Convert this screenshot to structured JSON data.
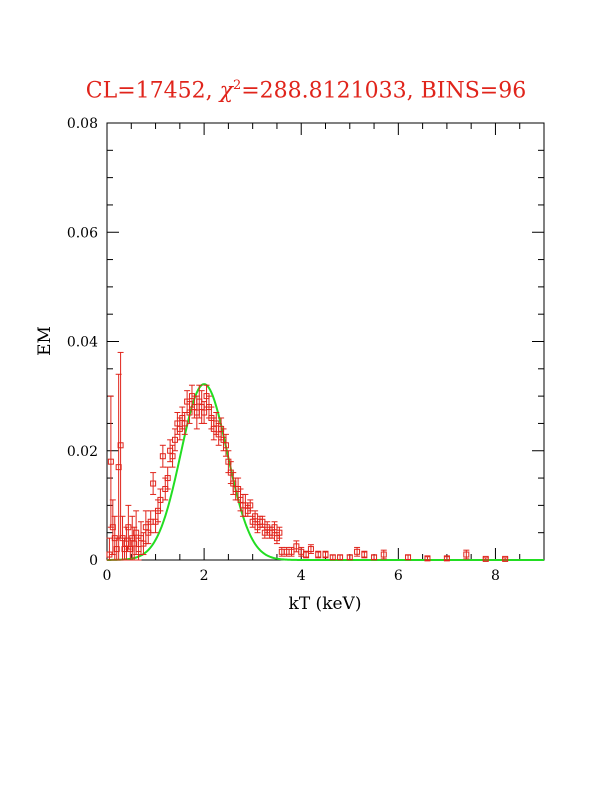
{
  "title_parts": {
    "prefix": "CL=17452, ",
    "chi": "χ",
    "sup": "2",
    "suffix": "=288.8121033, BINS=96"
  },
  "colors": {
    "title": "#e0241b",
    "data": "#e0241b",
    "fit": "#22dd22",
    "axis": "#000000"
  },
  "chart_data": {
    "type": "scatter",
    "xlabel": "kT (keV)",
    "ylabel": "EM",
    "xlim": [
      0,
      9
    ],
    "ylim": [
      0,
      0.08
    ],
    "xticks": [
      0,
      2,
      4,
      6,
      8
    ],
    "xtick_labels": [
      "0",
      "2",
      "4",
      "6",
      "8"
    ],
    "yticks": [
      0,
      0.02,
      0.04,
      0.06,
      0.08
    ],
    "ytick_labels": [
      "0",
      "0.02",
      "0.04",
      "0.06",
      "0.08"
    ],
    "grid": false,
    "series": [
      {
        "kind": "points-with-errorbars",
        "marker": "open-square",
        "x": [
          0.05,
          0.08,
          0.12,
          0.16,
          0.2,
          0.24,
          0.28,
          0.32,
          0.36,
          0.4,
          0.44,
          0.48,
          0.52,
          0.56,
          0.6,
          0.65,
          0.7,
          0.75,
          0.8,
          0.85,
          0.9,
          0.95,
          1.0,
          1.05,
          1.1,
          1.15,
          1.2,
          1.25,
          1.3,
          1.35,
          1.4,
          1.45,
          1.5,
          1.55,
          1.6,
          1.65,
          1.7,
          1.75,
          1.8,
          1.85,
          1.9,
          1.95,
          2.0,
          2.05,
          2.1,
          2.15,
          2.2,
          2.25,
          2.3,
          2.35,
          2.4,
          2.45,
          2.5,
          2.55,
          2.6,
          2.65,
          2.7,
          2.75,
          2.8,
          2.85,
          2.9,
          2.95,
          3.0,
          3.05,
          3.1,
          3.15,
          3.2,
          3.25,
          3.3,
          3.35,
          3.4,
          3.45,
          3.5,
          3.55,
          3.6,
          3.7,
          3.8,
          3.9,
          4.0,
          4.1,
          4.2,
          4.35,
          4.5,
          4.65,
          4.8,
          5.0,
          5.15,
          5.3,
          5.5,
          5.7,
          6.2,
          6.6,
          7.0,
          7.4,
          7.8,
          8.2
        ],
        "y": [
          0.001,
          0.018,
          0.006,
          0.004,
          0.002,
          0.017,
          0.021,
          0.004,
          0.002,
          0.003,
          0.006,
          0.002,
          0.004,
          0.003,
          0.005,
          0.002,
          0.004,
          0.003,
          0.006,
          0.005,
          0.007,
          0.014,
          0.007,
          0.009,
          0.011,
          0.019,
          0.013,
          0.015,
          0.02,
          0.019,
          0.022,
          0.025,
          0.024,
          0.026,
          0.025,
          0.029,
          0.027,
          0.03,
          0.028,
          0.027,
          0.029,
          0.028,
          0.027,
          0.03,
          0.028,
          0.026,
          0.024,
          0.025,
          0.023,
          0.024,
          0.022,
          0.021,
          0.018,
          0.016,
          0.014,
          0.013,
          0.013,
          0.011,
          0.01,
          0.01,
          0.009,
          0.01,
          0.007,
          0.008,
          0.006,
          0.007,
          0.007,
          0.005,
          0.006,
          0.005,
          0.005,
          0.006,
          0.004,
          0.005,
          0.0015,
          0.0015,
          0.0015,
          0.0025,
          0.0015,
          0.001,
          0.002,
          0.001,
          0.001,
          0.0005,
          0.0005,
          0.0005,
          0.0015,
          0.001,
          0.0005,
          0.001,
          0.0005,
          0.0003,
          0.0003,
          0.001,
          0.0002,
          0.0002
        ],
        "err": [
          0.003,
          0.012,
          0.005,
          0.004,
          0.002,
          0.017,
          0.017,
          0.004,
          0.002,
          0.003,
          0.004,
          0.002,
          0.004,
          0.003,
          0.004,
          0.002,
          0.003,
          0.002,
          0.003,
          0.002,
          0.002,
          0.002,
          0.002,
          0.002,
          0.002,
          0.002,
          0.002,
          0.002,
          0.002,
          0.002,
          0.002,
          0.002,
          0.002,
          0.002,
          0.002,
          0.002,
          0.002,
          0.002,
          0.002,
          0.003,
          0.003,
          0.003,
          0.002,
          0.002,
          0.002,
          0.002,
          0.002,
          0.002,
          0.002,
          0.002,
          0.002,
          0.002,
          0.002,
          0.002,
          0.002,
          0.002,
          0.002,
          0.002,
          0.002,
          0.002,
          0.001,
          0.001,
          0.001,
          0.001,
          0.001,
          0.001,
          0.001,
          0.001,
          0.001,
          0.001,
          0.001,
          0.001,
          0.001,
          0.001,
          0.0008,
          0.0008,
          0.0008,
          0.001,
          0.0008,
          0.0006,
          0.0008,
          0.0006,
          0.0006,
          0.0004,
          0.0004,
          0.0004,
          0.0008,
          0.0006,
          0.0004,
          0.0008,
          0.0004,
          0.0003,
          0.0003,
          0.0008,
          0.0002,
          0.0002
        ]
      },
      {
        "kind": "line",
        "model": "gaussian",
        "amplitude": 0.0322,
        "center": 2.0,
        "sigma": 0.48,
        "x_from": 0,
        "x_to": 9
      }
    ]
  }
}
